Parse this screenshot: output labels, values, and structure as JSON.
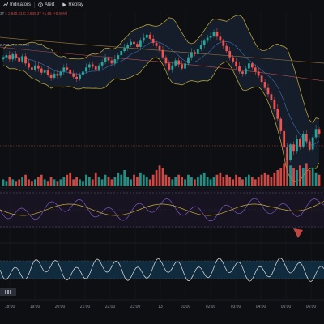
{
  "toolbar": {
    "items": [
      {
        "label": "Indicators",
        "icon": "indicators-icon"
      },
      {
        "label": "Alert",
        "icon": "alert-clock-icon"
      },
      {
        "label": "Replay",
        "icon": "replay-icon"
      }
    ]
  },
  "legend": {
    "prefix": "3T",
    "values_text": "L 2,640.21  C 2,648.37  +1.56 (+0.06%)",
    "bb_text": "2,737.37  2,704.14"
  },
  "colors": {
    "up": "#26a69a",
    "down": "#ef5350",
    "bb_upper": "#c9b13a",
    "bb_fill": "#1c2940",
    "rsi_line": "#7e57c2",
    "rsi_ma": "#c9b13a",
    "osc_line": "#e6e6e6",
    "osc_band": "#12324a"
  },
  "axis": {
    "time_labels": [
      "18:00",
      "19:00",
      "20:00",
      "21:00",
      "22:00",
      "23:00",
      "13",
      "01:00",
      "02:00",
      "03:00",
      "04:00",
      "05:00",
      "06:00"
    ]
  },
  "chart_data": {
    "type": "candlestick",
    "note_series": "approximate visual values",
    "price": {
      "close": [
        2700,
        2702,
        2698,
        2703,
        2699,
        2696,
        2701,
        2694,
        2690,
        2688,
        2692,
        2689,
        2685,
        2687,
        2683,
        2680,
        2684,
        2682,
        2686,
        2690,
        2688,
        2684,
        2681,
        2679,
        2683,
        2686,
        2690,
        2693,
        2691,
        2688,
        2692,
        2695,
        2699,
        2697,
        2694,
        2698,
        2702,
        2706,
        2709,
        2712,
        2715,
        2713,
        2710,
        2716,
        2719,
        2722,
        2718,
        2714,
        2711,
        2707,
        2700,
        2694,
        2688,
        2692,
        2697,
        2693,
        2689,
        2694,
        2700,
        2705,
        2703,
        2708,
        2712,
        2716,
        2719,
        2721,
        2725,
        2720,
        2716,
        2711,
        2706,
        2700,
        2696,
        2691,
        2686,
        2684,
        2689,
        2694,
        2690,
        2686,
        2682,
        2676,
        2670,
        2664,
        2658,
        2650,
        2640,
        2628,
        2612,
        2600,
        2615,
        2608,
        2620,
        2613,
        2625,
        2618,
        2610,
        2622,
        2630,
        2625
      ]
    },
    "volume": [
      3,
      2,
      4,
      3,
      2,
      3,
      4,
      5,
      3,
      2,
      3,
      4,
      5,
      3,
      2,
      4,
      3,
      2,
      3,
      4,
      5,
      6,
      3,
      4,
      3,
      2,
      5,
      4,
      3,
      6,
      4,
      3,
      5,
      4,
      3,
      4,
      6,
      5,
      7,
      4,
      3,
      5,
      4,
      6,
      5,
      4,
      3,
      5,
      7,
      9,
      8,
      5,
      4,
      3,
      4,
      5,
      4,
      3,
      5,
      4,
      3,
      4,
      5,
      6,
      4,
      3,
      4,
      5,
      6,
      4,
      5,
      4,
      3,
      5,
      4,
      3,
      4,
      5,
      4,
      3,
      4,
      5,
      6,
      5,
      4,
      6,
      7,
      8,
      10,
      14,
      9,
      8,
      7,
      9,
      8,
      10,
      7,
      8,
      6,
      5
    ],
    "rsi": {
      "overbought": 70,
      "oversold": 30
    }
  }
}
